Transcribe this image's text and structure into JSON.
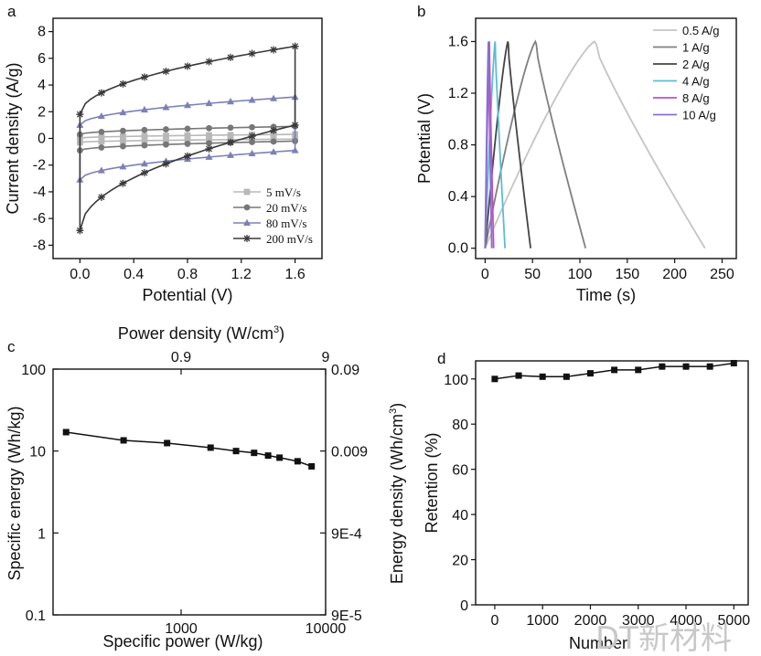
{
  "watermark": "DT新材料",
  "chart_data": [
    {
      "panel": "a",
      "type": "line",
      "xlabel": "Potential (V)",
      "ylabel": "Current density (A/g)",
      "xlim": [
        -0.2,
        1.8
      ],
      "ylim": [
        -9,
        9
      ],
      "xticks": [
        "0.0",
        "0.4",
        "0.8",
        "1.2",
        "1.6"
      ],
      "yticks": [
        "-8",
        "-6",
        "-4",
        "-2",
        "0",
        "2",
        "4",
        "6",
        "8"
      ],
      "legend": "bottom-right",
      "series": [
        {
          "name": "5 mV/s",
          "color": "#b8b8b8",
          "marker": "square",
          "upper_start": 0.02,
          "upper_end": 0.3,
          "lower_start": -0.3,
          "lower_end": -0.05
        },
        {
          "name": "20 mV/s",
          "color": "#777777",
          "marker": "circle",
          "upper_start": 0.3,
          "upper_end": 0.9,
          "lower_start": -0.9,
          "lower_end": -0.2
        },
        {
          "name": "80 mV/s",
          "color": "#7d80b5",
          "marker": "triangle",
          "upper_start": 1.0,
          "upper_end": 3.1,
          "lower_start": -3.1,
          "lower_end": -0.9
        },
        {
          "name": "200 mV/s",
          "color": "#3a3a3a",
          "marker": "star",
          "upper_start": 1.8,
          "upper_end": 6.9,
          "lower_start": -6.9,
          "lower_end": 1.0
        }
      ]
    },
    {
      "panel": "b",
      "type": "line",
      "xlabel": "Time (s)",
      "ylabel": "Potential (V)",
      "xlim": [
        -10,
        265
      ],
      "ylim": [
        -0.08,
        1.78
      ],
      "xticks": [
        "0",
        "50",
        "100",
        "150",
        "200",
        "250"
      ],
      "yticks": [
        "0.0",
        "0.4",
        "0.8",
        "1.2",
        "1.6"
      ],
      "legend": "top-right",
      "series": [
        {
          "name": "0.5 A/g",
          "color": "#c4c4c4",
          "t_peak": 115,
          "t_end": 232
        },
        {
          "name": "1 A/g",
          "color": "#808080",
          "t_peak": 53,
          "t_end": 106
        },
        {
          "name": "2 A/g",
          "color": "#444444",
          "t_peak": 24,
          "t_end": 48
        },
        {
          "name": "4 A/g",
          "color": "#5bbcd6",
          "t_peak": 10.5,
          "t_end": 21
        },
        {
          "name": "8 A/g",
          "color": "#c04fc4",
          "t_peak": 4.5,
          "t_end": 9
        },
        {
          "name": "10 A/g",
          "color": "#8a6fd0",
          "t_peak": 3.5,
          "t_end": 7
        }
      ]
    },
    {
      "panel": "c",
      "type": "scatter",
      "xlabel": "Specific power  (W/kg)",
      "ylabel": "Specific energy  (Wh/kg)",
      "top_xlabel": "Power density  (W/cm",
      "right_ylabel": "Energy density  (Wh/cm",
      "unit_superscript": "3",
      "unit_close": ")",
      "xscale": "log",
      "yscale": "log",
      "xlim": [
        130,
        10000
      ],
      "ylim": [
        0.1,
        100
      ],
      "xticks": [
        "1000",
        "10000"
      ],
      "yticks": [
        "0.1",
        "1",
        "10",
        "100"
      ],
      "top_xticks": [
        "0.9",
        "9"
      ],
      "right_yticks": [
        "9E-5",
        "9E-4",
        "0.009",
        "0.09"
      ],
      "points": [
        {
          "x": 160,
          "y": 17
        },
        {
          "x": 400,
          "y": 13.5
        },
        {
          "x": 800,
          "y": 12.5
        },
        {
          "x": 1600,
          "y": 11
        },
        {
          "x": 2400,
          "y": 10
        },
        {
          "x": 3200,
          "y": 9.5
        },
        {
          "x": 4000,
          "y": 8.8
        },
        {
          "x": 4800,
          "y": 8.3
        },
        {
          "x": 6400,
          "y": 7.5
        },
        {
          "x": 8000,
          "y": 6.5
        }
      ]
    },
    {
      "panel": "d",
      "type": "line",
      "xlabel": "Number",
      "ylabel": "Retention (%)",
      "xlim": [
        -400,
        5300
      ],
      "ylim": [
        0,
        108
      ],
      "xticks": [
        "0",
        "1000",
        "2000",
        "3000",
        "4000",
        "5000"
      ],
      "yticks": [
        "0",
        "20",
        "40",
        "60",
        "80",
        "100"
      ],
      "points": [
        {
          "x": 0,
          "y": 100
        },
        {
          "x": 500,
          "y": 101.5
        },
        {
          "x": 1000,
          "y": 101
        },
        {
          "x": 1500,
          "y": 101
        },
        {
          "x": 2000,
          "y": 102.5
        },
        {
          "x": 2500,
          "y": 104
        },
        {
          "x": 3000,
          "y": 104
        },
        {
          "x": 3500,
          "y": 105.5
        },
        {
          "x": 4000,
          "y": 105.5
        },
        {
          "x": 4500,
          "y": 105.5
        },
        {
          "x": 5000,
          "y": 107
        }
      ]
    }
  ]
}
